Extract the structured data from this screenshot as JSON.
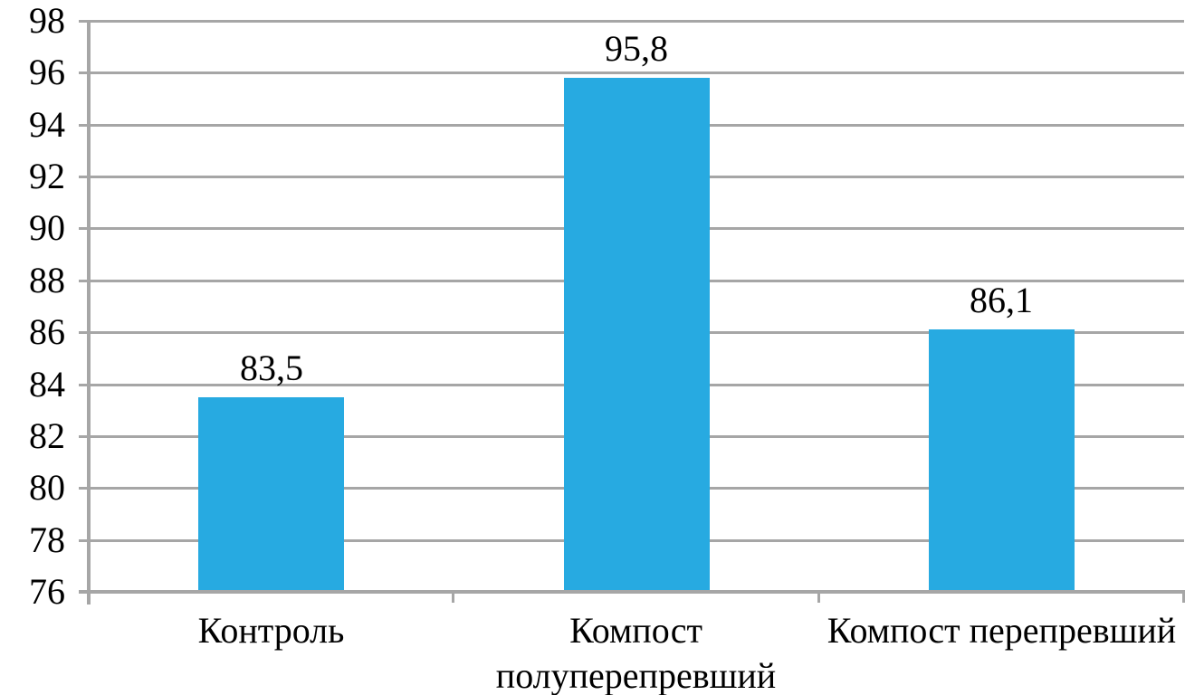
{
  "chart_data": {
    "type": "bar",
    "categories": [
      "Контроль",
      "Компост полуперепревший",
      "Компост перепревший"
    ],
    "values": [
      83.5,
      95.8,
      86.1
    ],
    "data_labels": [
      "83,5",
      "95,8",
      "86,1"
    ],
    "yticks": [
      76,
      78,
      80,
      82,
      84,
      86,
      88,
      90,
      92,
      94,
      96,
      98
    ],
    "ylim": [
      76,
      98
    ],
    "title": "",
    "xlabel": "",
    "ylabel": "",
    "grid": true,
    "legend": false,
    "bar_color": "#27AAE1",
    "gridline_color": "#A6A6A6",
    "axis_color": "#A6A6A6",
    "text_color": "#000000",
    "background_color": "#FFFFFF"
  }
}
